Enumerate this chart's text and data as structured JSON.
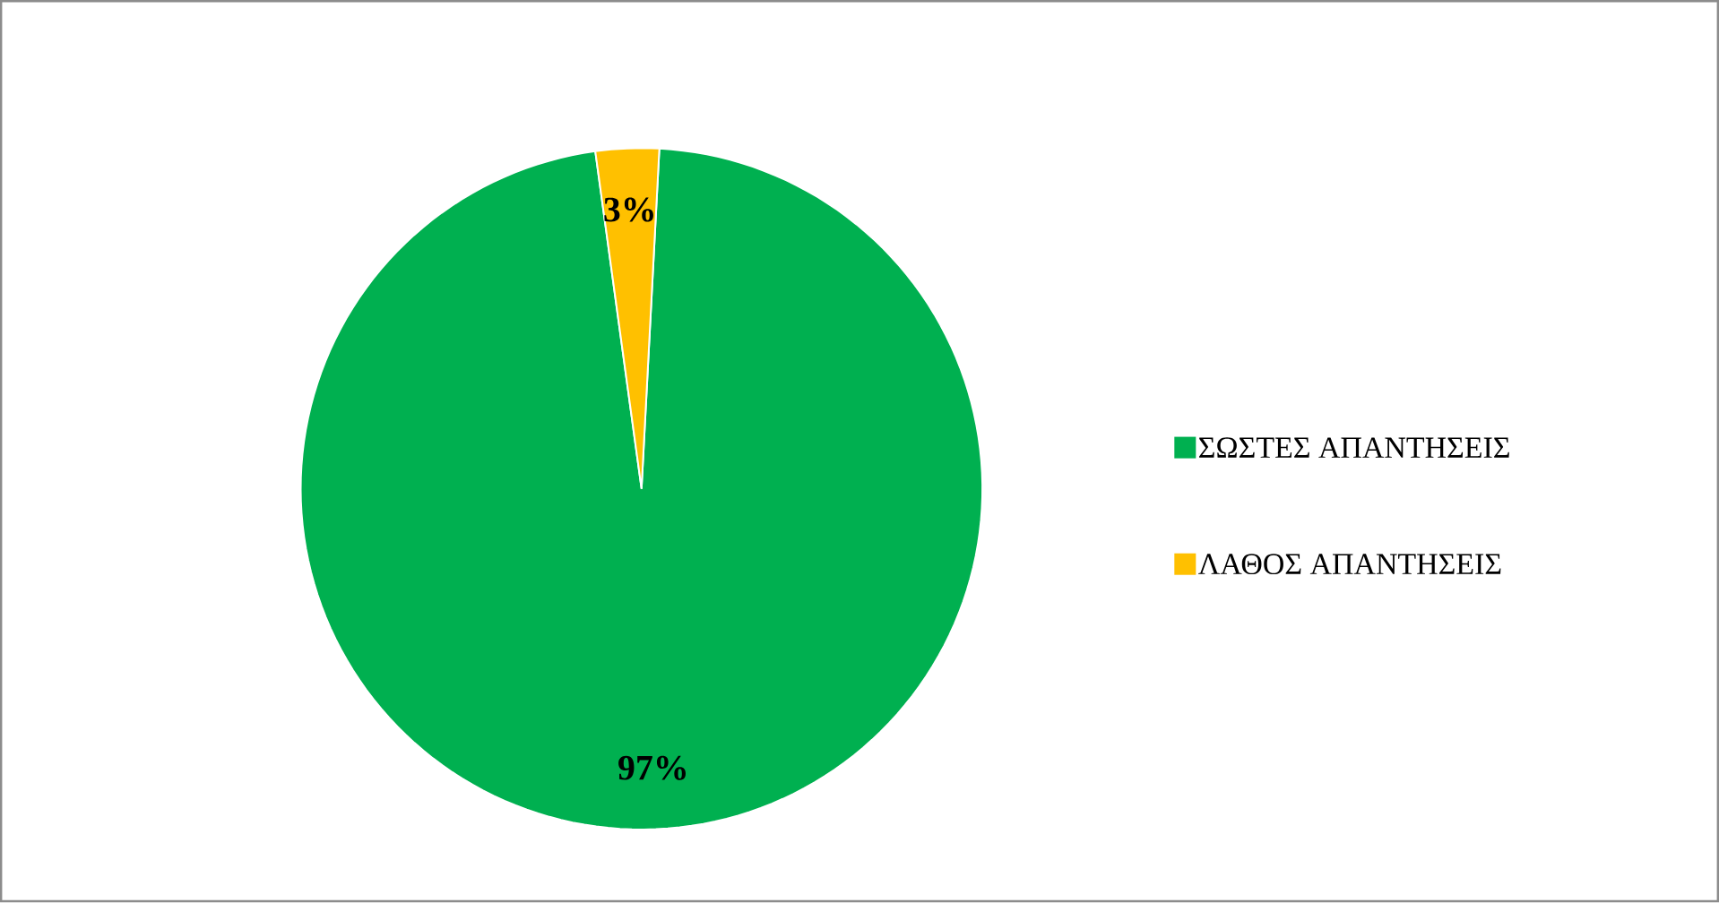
{
  "chart_data": {
    "type": "pie",
    "categories": [
      "ΣΩΣΤΕΣ ΑΠΑΝΤΗΣΕΙΣ",
      "ΛΑΘΟΣ ΑΠΑΝΤΗΣΕΙΣ"
    ],
    "values": [
      97,
      3
    ],
    "colors": [
      "#00b050",
      "#ffc000"
    ],
    "value_labels": [
      "97%",
      "3%"
    ],
    "legend": "right"
  }
}
